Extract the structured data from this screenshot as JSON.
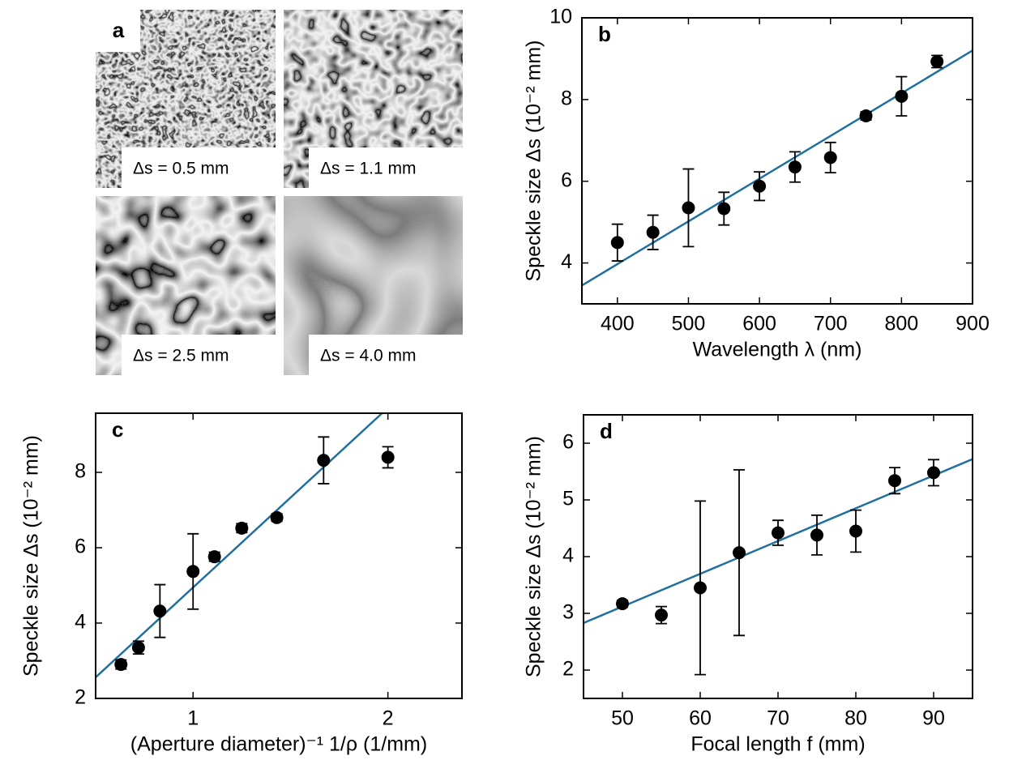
{
  "panel_a": {
    "label": "a",
    "images": [
      {
        "caption": "Δs = 0.5 mm"
      },
      {
        "caption": "Δs = 1.1 mm"
      },
      {
        "caption": "Δs = 2.5 mm"
      },
      {
        "caption": "Δs = 4.0 mm"
      }
    ]
  },
  "chart_data": [
    {
      "type": "scatter",
      "panel": "b",
      "xlabel": "Wavelength λ (nm)",
      "ylabel": "Speckle size Δs (10⁻² mm)",
      "x": [
        400,
        450,
        500,
        550,
        600,
        650,
        700,
        750,
        800,
        850
      ],
      "series": [
        {
          "color": "#000000",
          "values": [
            4.5,
            4.75,
            5.35,
            5.33,
            5.88,
            6.35,
            6.58,
            7.6,
            8.08,
            8.93
          ],
          "errors": [
            0.45,
            0.42,
            0.95,
            0.4,
            0.35,
            0.37,
            0.37,
            0.1,
            0.48,
            0.15
          ]
        }
      ],
      "fit": {
        "color": "#1f6f9f",
        "x": [
          350,
          900
        ],
        "y": [
          3.45,
          9.2
        ]
      },
      "xlim": [
        350,
        900
      ],
      "ylim": [
        3,
        10
      ],
      "xticks": [
        400,
        500,
        600,
        700,
        800,
        900
      ],
      "yticks": [
        4,
        6,
        8,
        10
      ]
    },
    {
      "type": "scatter",
      "panel": "c",
      "xlabel": "(Aperture diameter)⁻¹ 1/ρ (1/mm)",
      "ylabel": "Speckle size Δs (10⁻² mm)",
      "x": [
        0.63,
        0.72,
        0.83,
        1.0,
        1.11,
        1.25,
        1.43,
        1.67,
        2.0
      ],
      "series": [
        {
          "color": "#000000",
          "values": [
            2.9,
            3.35,
            4.32,
            5.37,
            5.76,
            6.52,
            6.8,
            8.32,
            8.4
          ],
          "errors": [
            0.12,
            0.17,
            0.7,
            1.0,
            0.12,
            0.12,
            0.1,
            0.62,
            0.28
          ]
        }
      ],
      "fit": {
        "color": "#1f6f9f",
        "x": [
          0.5,
          1.97
        ],
        "y": [
          2.56,
          9.57
        ]
      },
      "xlim": [
        0.5,
        2.38
      ],
      "ylim": [
        2,
        9.57
      ],
      "xticks": [
        1,
        2
      ],
      "yticks": [
        2,
        4,
        6,
        8
      ]
    },
    {
      "type": "scatter",
      "panel": "d",
      "xlabel": "Focal length f (mm)",
      "ylabel": "Speckle size Δs (10⁻² mm)",
      "x": [
        50,
        55,
        60,
        65,
        70,
        75,
        80,
        85,
        90
      ],
      "series": [
        {
          "color": "#000000",
          "values": [
            3.17,
            2.97,
            3.45,
            4.07,
            4.42,
            4.38,
            4.45,
            5.34,
            5.48
          ],
          "errors": [
            0.06,
            0.15,
            1.53,
            1.46,
            0.22,
            0.35,
            0.37,
            0.23,
            0.23
          ]
        }
      ],
      "fit": {
        "color": "#1f6f9f",
        "x": [
          45,
          95
        ],
        "y": [
          2.83,
          5.72
        ]
      },
      "xlim": [
        45,
        95
      ],
      "ylim": [
        1.5,
        6.5
      ],
      "xticks": [
        50,
        60,
        70,
        80,
        90
      ],
      "yticks": [
        2,
        3,
        4,
        5,
        6
      ]
    }
  ]
}
